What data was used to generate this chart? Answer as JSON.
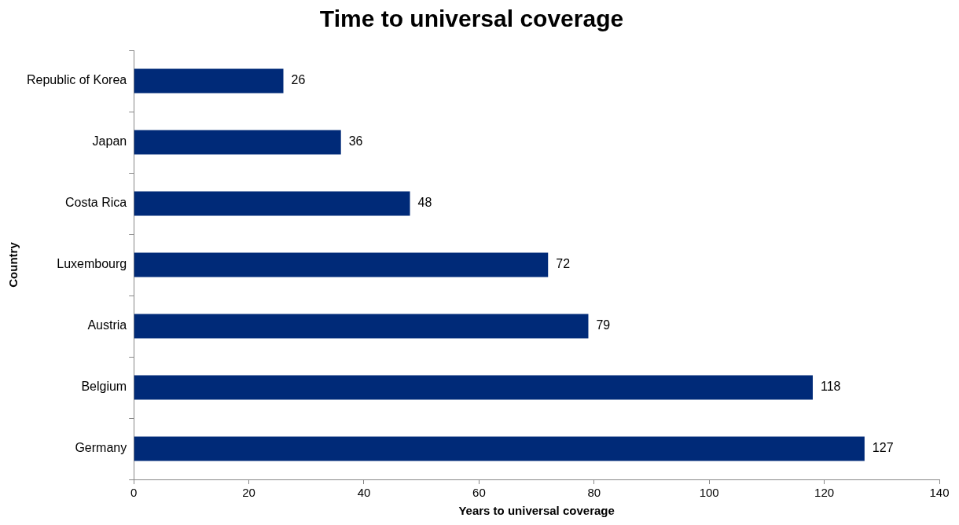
{
  "chart_data": {
    "type": "bar",
    "orientation": "horizontal",
    "title": "Time to universal coverage",
    "xlabel": "Years to universal coverage",
    "ylabel": "Country",
    "categories": [
      "Republic of Korea",
      "Japan",
      "Costa Rica",
      "Luxembourg",
      "Austria",
      "Belgium",
      "Germany"
    ],
    "values": [
      26,
      36,
      48,
      72,
      79,
      118,
      127
    ],
    "color": "#002a78",
    "xlim": [
      0,
      140
    ],
    "xticks": [
      0,
      20,
      40,
      60,
      80,
      100,
      120,
      140
    ],
    "grid": false,
    "legend": false,
    "data_labels": true
  }
}
